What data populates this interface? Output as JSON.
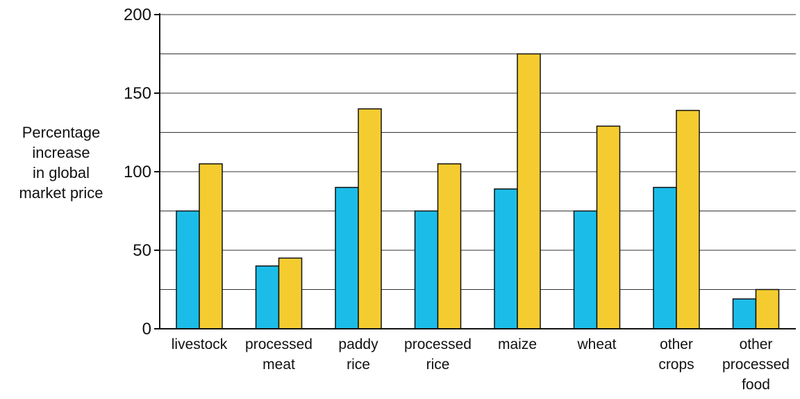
{
  "chart_data": {
    "type": "bar",
    "ylabel": [
      "Percentage",
      "increase",
      "in global",
      "market price"
    ],
    "ylim": [
      0,
      200
    ],
    "yticks": [
      0,
      50,
      100,
      150,
      200
    ],
    "grid": true,
    "categories": [
      [
        "livestock"
      ],
      [
        "processed",
        "meat"
      ],
      [
        "paddy",
        "rice"
      ],
      [
        "processed",
        "rice"
      ],
      [
        "maize"
      ],
      [
        "wheat"
      ],
      [
        "other",
        "crops"
      ],
      [
        "other",
        "processed",
        "food"
      ]
    ],
    "series": [
      {
        "color": "#1bbde8",
        "values": [
          75,
          40,
          90,
          75,
          89,
          75,
          90,
          19
        ]
      },
      {
        "color": "#f5cc30",
        "values": [
          105,
          45,
          140,
          105,
          175,
          129,
          139,
          25
        ]
      }
    ]
  }
}
